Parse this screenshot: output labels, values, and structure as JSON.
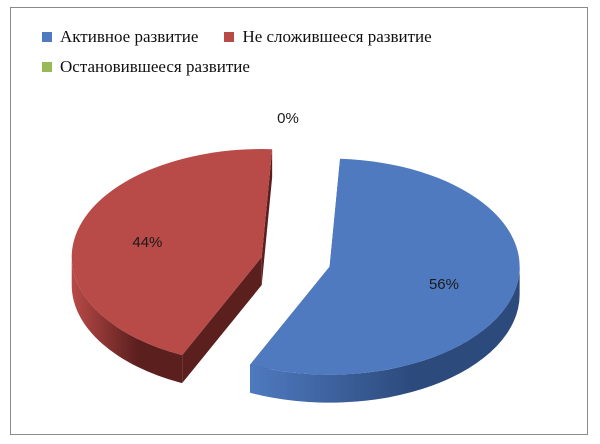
{
  "chart_data": {
    "type": "pie",
    "style": "3d-exploded",
    "categories": [
      "Активное  развитие",
      "Не сложившееся развитие",
      "Остановившееся развитие"
    ],
    "values": [
      56,
      44,
      0
    ],
    "labels": [
      "56%",
      "44%",
      "0%"
    ],
    "colors": [
      "#4f7ac0",
      "#b84a47",
      "#98b957"
    ],
    "side_colors": [
      "#2c4a7c",
      "#5b1f1e",
      "#5e7a30"
    ],
    "legend_position": "top-left"
  }
}
